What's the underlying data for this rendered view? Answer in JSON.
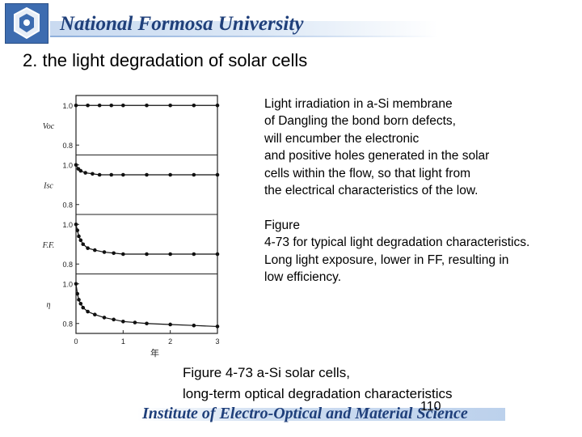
{
  "header": {
    "university": "National Formosa University",
    "logo": "hexagon-logo-icon",
    "accent_color": "#1f3f7a"
  },
  "slide": {
    "heading": "2. the light degradation of solar cells"
  },
  "description": {
    "paragraph1": [
      "Light irradiation in a-Si membrane",
      "of Dangling the bond born defects,",
      "will encumber the electronic",
      "and positive holes generated in the solar",
      "cells within the flow, so that light from",
      "the electrical characteristics of the low."
    ],
    "paragraph2": [
      "Figure",
      "4-73 for typical light degradation characteristics.",
      "Long light exposure, lower in FF, resulting in",
      "low efficiency."
    ]
  },
  "caption": {
    "line1": "Figure 4-73 a-Si solar cells,",
    "line2": "long-term optical degradation characteristics"
  },
  "footer": {
    "institute": "Institute of Electro-Optical and Material Science",
    "page_number": "110"
  },
  "chart_data": {
    "type": "line",
    "x_ticks": [
      "0",
      "1",
      "2",
      "3"
    ],
    "xlabel": "年",
    "xlim": [
      0,
      3
    ],
    "panels": [
      {
        "ylabel": "Voc",
        "ylim": [
          0.75,
          1.05
        ],
        "y_ticks": [
          "1.0",
          "0.8"
        ],
        "x": [
          0,
          0.25,
          0.5,
          0.75,
          1,
          1.5,
          2,
          2.5,
          3
        ],
        "values": [
          1.0,
          1.0,
          1.0,
          1.0,
          1.0,
          1.0,
          1.0,
          1.0,
          1.0
        ]
      },
      {
        "ylabel": "Isc",
        "ylim": [
          0.75,
          1.05
        ],
        "y_ticks": [
          "1.0",
          "0.8"
        ],
        "x": [
          0,
          0.05,
          0.1,
          0.2,
          0.35,
          0.5,
          0.75,
          1,
          1.5,
          2,
          2.5,
          3
        ],
        "values": [
          1.0,
          0.98,
          0.97,
          0.96,
          0.955,
          0.95,
          0.95,
          0.95,
          0.95,
          0.95,
          0.95,
          0.95
        ]
      },
      {
        "ylabel": "F.F.",
        "ylim": [
          0.75,
          1.05
        ],
        "y_ticks": [
          "1.0",
          "0.8"
        ],
        "x": [
          0,
          0.03,
          0.06,
          0.1,
          0.15,
          0.25,
          0.4,
          0.6,
          0.8,
          1,
          1.5,
          2,
          2.5,
          3
        ],
        "values": [
          1.0,
          0.97,
          0.94,
          0.92,
          0.9,
          0.88,
          0.87,
          0.86,
          0.855,
          0.85,
          0.85,
          0.85,
          0.85,
          0.85
        ]
      },
      {
        "ylabel": "η",
        "ylim": [
          0.75,
          1.05
        ],
        "y_ticks": [
          "1.0",
          "0.8"
        ],
        "x": [
          0,
          0.03,
          0.06,
          0.1,
          0.15,
          0.25,
          0.4,
          0.6,
          0.8,
          1,
          1.25,
          1.5,
          2,
          2.5,
          3
        ],
        "values": [
          1.0,
          0.95,
          0.92,
          0.9,
          0.88,
          0.86,
          0.845,
          0.83,
          0.82,
          0.81,
          0.805,
          0.8,
          0.795,
          0.79,
          0.785
        ]
      }
    ],
    "grid": false,
    "marker": "circle",
    "line_color": "#111111"
  }
}
